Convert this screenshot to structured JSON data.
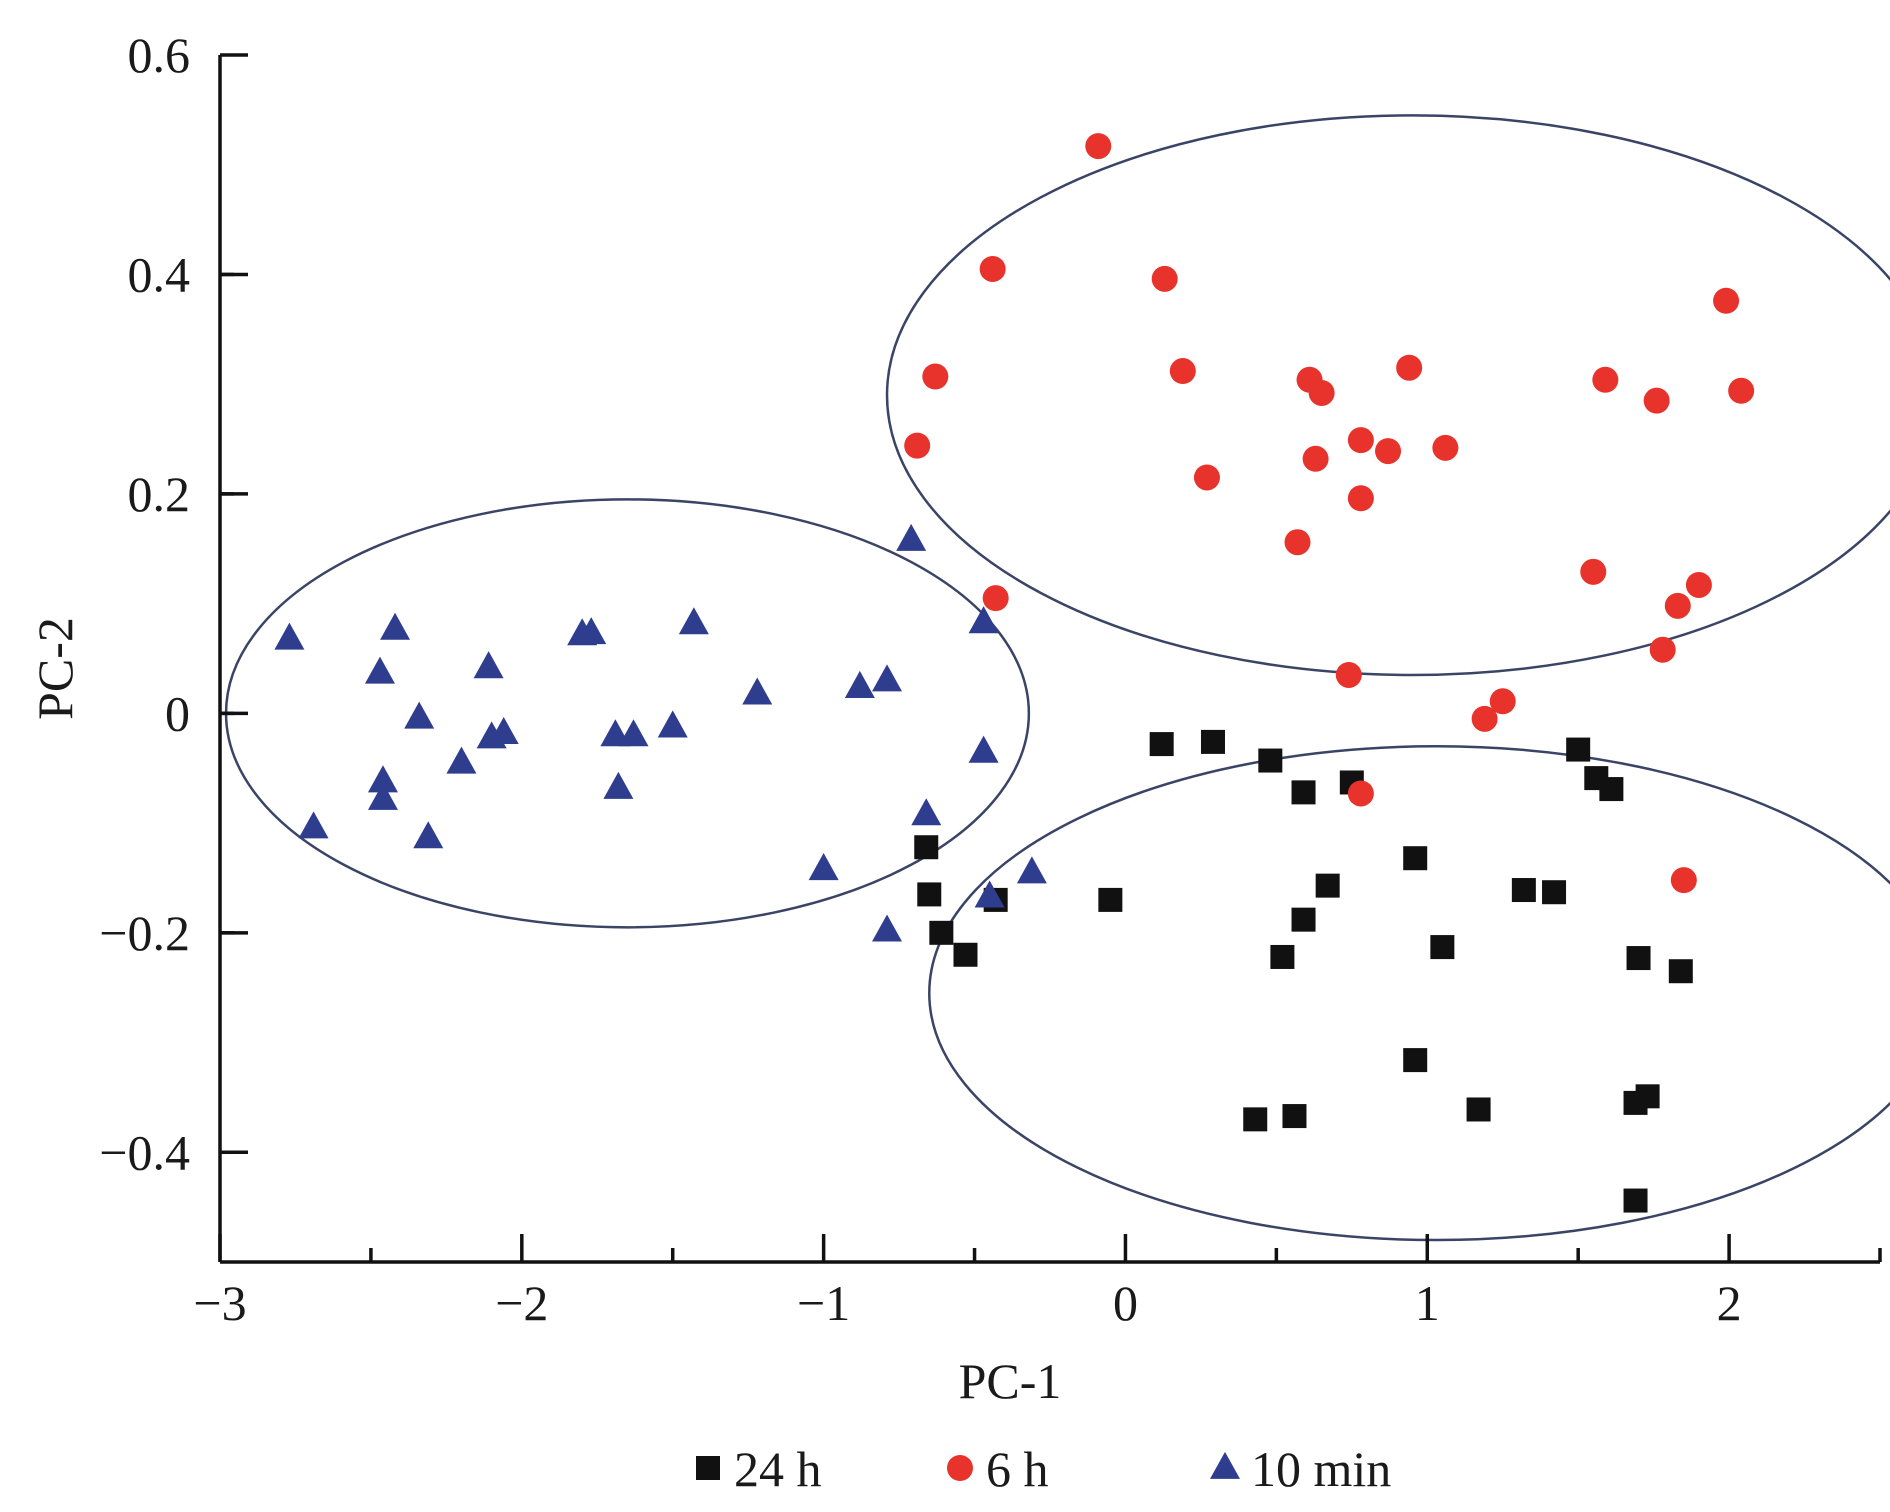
{
  "chart_data": {
    "type": "scatter",
    "title": "",
    "xlabel": "PC-1",
    "ylabel": "PC-2",
    "xlim": [
      -3,
      2.5
    ],
    "ylim": [
      -0.5,
      0.6
    ],
    "xticks": [
      -3,
      -2,
      -1,
      0,
      1,
      2
    ],
    "xtick_labels": [
      "−3",
      "−2",
      "−1",
      "0",
      "1",
      "2"
    ],
    "yticks": [
      -0.4,
      -0.2,
      0,
      0.2,
      0.4,
      0.6
    ],
    "ytick_labels": [
      "−0.4",
      "−0.2",
      "0",
      "0.2",
      "0.4",
      "0.6"
    ],
    "grid": false,
    "legend_position": "bottom",
    "series": [
      {
        "name": "24 h",
        "marker": "square",
        "color": "#111111",
        "points": [
          [
            0.12,
            -0.028
          ],
          [
            0.29,
            -0.026
          ],
          [
            0.48,
            -0.043
          ],
          [
            0.59,
            -0.072
          ],
          [
            0.75,
            -0.063
          ],
          [
            1.5,
            -0.033
          ],
          [
            1.56,
            -0.059
          ],
          [
            1.61,
            -0.069
          ],
          [
            -0.66,
            -0.122
          ],
          [
            -0.65,
            -0.165
          ],
          [
            -0.61,
            -0.2
          ],
          [
            -0.53,
            -0.22
          ],
          [
            -0.43,
            -0.17
          ],
          [
            -0.05,
            -0.17
          ],
          [
            0.67,
            -0.157
          ],
          [
            0.96,
            -0.132
          ],
          [
            1.32,
            -0.161
          ],
          [
            1.42,
            -0.163
          ],
          [
            0.59,
            -0.188
          ],
          [
            0.52,
            -0.222
          ],
          [
            1.05,
            -0.213
          ],
          [
            1.7,
            -0.223
          ],
          [
            1.84,
            -0.235
          ],
          [
            0.96,
            -0.316
          ],
          [
            0.43,
            -0.37
          ],
          [
            0.56,
            -0.367
          ],
          [
            1.17,
            -0.361
          ],
          [
            1.69,
            -0.355
          ],
          [
            1.73,
            -0.349
          ],
          [
            1.69,
            -0.444
          ]
        ]
      },
      {
        "name": "6 h",
        "marker": "circle",
        "color": "#e8322c",
        "points": [
          [
            -0.09,
            0.517
          ],
          [
            -0.44,
            0.405
          ],
          [
            0.13,
            0.396
          ],
          [
            -0.63,
            0.307
          ],
          [
            0.19,
            0.312
          ],
          [
            0.61,
            0.304
          ],
          [
            0.65,
            0.292
          ],
          [
            0.94,
            0.315
          ],
          [
            1.59,
            0.304
          ],
          [
            1.76,
            0.285
          ],
          [
            1.99,
            0.376
          ],
          [
            2.04,
            0.294
          ],
          [
            -0.69,
            0.244
          ],
          [
            0.27,
            0.215
          ],
          [
            0.78,
            0.249
          ],
          [
            0.87,
            0.239
          ],
          [
            1.06,
            0.242
          ],
          [
            0.63,
            0.232
          ],
          [
            0.78,
            0.196
          ],
          [
            0.57,
            0.156
          ],
          [
            1.55,
            0.129
          ],
          [
            1.9,
            0.117
          ],
          [
            1.83,
            0.098
          ],
          [
            1.78,
            0.058
          ],
          [
            -0.43,
            0.105
          ],
          [
            0.74,
            0.035
          ],
          [
            1.25,
            0.011
          ],
          [
            1.19,
            -0.005
          ],
          [
            0.78,
            -0.073
          ],
          [
            1.85,
            -0.152
          ]
        ]
      },
      {
        "name": "10 min",
        "marker": "triangle",
        "color": "#2f3d8f",
        "points": [
          [
            -2.77,
            0.068
          ],
          [
            -2.42,
            0.077
          ],
          [
            -2.47,
            0.037
          ],
          [
            -2.11,
            0.042
          ],
          [
            -1.8,
            0.072
          ],
          [
            -1.77,
            0.073
          ],
          [
            -1.43,
            0.082
          ],
          [
            -1.22,
            0.018
          ],
          [
            -0.88,
            0.024
          ],
          [
            -0.79,
            0.03
          ],
          [
            -0.71,
            0.158
          ],
          [
            -0.47,
            0.083
          ],
          [
            -2.34,
            -0.004
          ],
          [
            -2.1,
            -0.022
          ],
          [
            -2.06,
            -0.018
          ],
          [
            -1.69,
            -0.02
          ],
          [
            -1.63,
            -0.02
          ],
          [
            -1.5,
            -0.012
          ],
          [
            -2.2,
            -0.045
          ],
          [
            -2.46,
            -0.062
          ],
          [
            -2.46,
            -0.078
          ],
          [
            -1.68,
            -0.068
          ],
          [
            -2.69,
            -0.104
          ],
          [
            -2.31,
            -0.113
          ],
          [
            -0.47,
            -0.035
          ],
          [
            -0.66,
            -0.092
          ],
          [
            -1.0,
            -0.142
          ],
          [
            -0.31,
            -0.145
          ],
          [
            -0.45,
            -0.167
          ],
          [
            -0.79,
            -0.198
          ]
        ]
      }
    ],
    "ellipses": [
      {
        "series": "6 h",
        "center": [
          0.95,
          0.29
        ],
        "rx": 1.74,
        "ry": 0.255
      },
      {
        "series": "10 min",
        "center": [
          -1.65,
          0.0
        ],
        "rx": 1.33,
        "ry": 0.195
      },
      {
        "series": "24 h",
        "center": [
          1.03,
          -0.255
        ],
        "rx": 1.68,
        "ry": 0.225
      }
    ]
  }
}
